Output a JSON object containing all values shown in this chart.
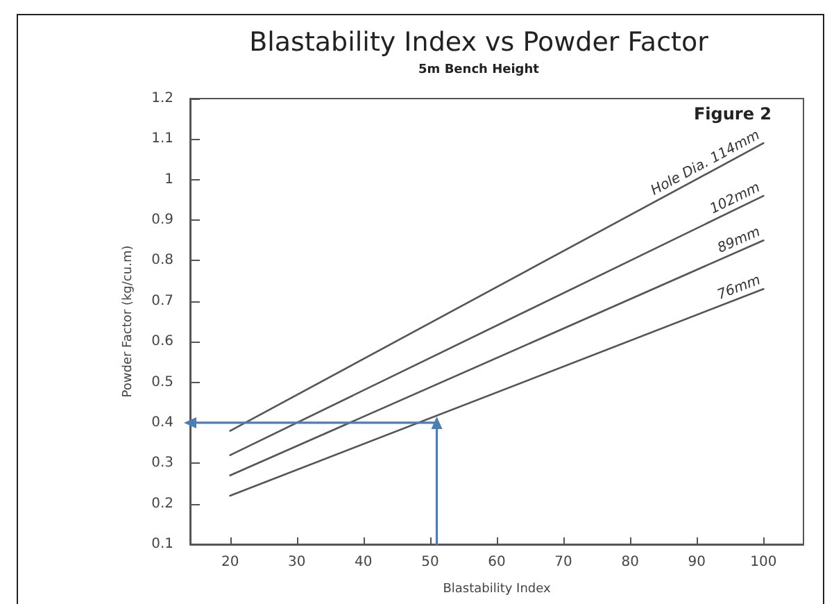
{
  "chart_data": {
    "type": "line",
    "title": "Blastability Index vs Powder Factor",
    "subtitle": "5m Bench Height",
    "xlabel": "Blastability Index",
    "ylabel": "Powder Factor (kg/cu.m)",
    "annotations": [
      "Figure 2"
    ],
    "xlim": [
      14,
      106
    ],
    "xticks": [
      20,
      30,
      40,
      50,
      60,
      70,
      80,
      90,
      100
    ],
    "ylim": [
      0.1,
      1.2
    ],
    "yticks": [
      0.1,
      0.2,
      0.3,
      0.4,
      0.5,
      0.6,
      0.7,
      0.8,
      0.9,
      1,
      1.1,
      1.2
    ],
    "grid": false,
    "legend": false,
    "marker": "none",
    "line_style": "solid",
    "series": [
      {
        "name": "Hole Dia. 114mm",
        "color": "#555555",
        "x": [
          20,
          100
        ],
        "values": [
          0.38,
          1.09
        ]
      },
      {
        "name": "102mm",
        "color": "#555555",
        "x": [
          20,
          100
        ],
        "values": [
          0.32,
          0.96
        ]
      },
      {
        "name": "89mm",
        "color": "#555555",
        "x": [
          20,
          100
        ],
        "values": [
          0.27,
          0.85
        ]
      },
      {
        "name": "76mm",
        "color": "#555555",
        "x": [
          20,
          100
        ],
        "values": [
          0.22,
          0.73
        ]
      },
      {
        "color": "#4a7fb5",
        "marker": "triangle",
        "x": [
          51,
          51,
          14
        ],
        "values": [
          0.1,
          0.4,
          0.4
        ]
      }
    ]
  }
}
